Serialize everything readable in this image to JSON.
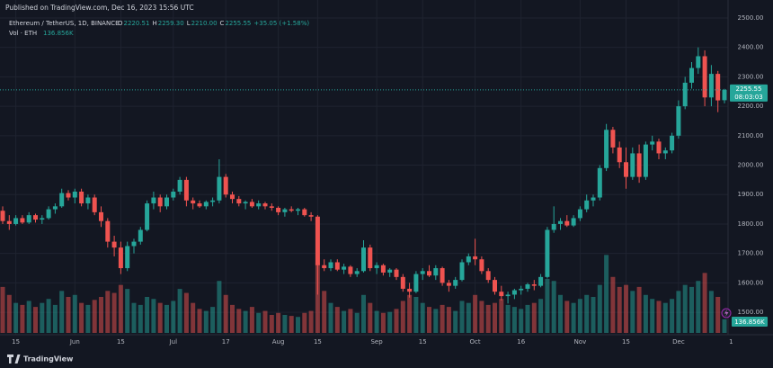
{
  "header": {
    "published": "Published on TradingView.com, Dec 16, 2023 15:56 UTC",
    "symbol": "Ethereum / TetherUS, 1D, BINANCE",
    "ohlc": [
      {
        "label": "O",
        "value": "2220.51"
      },
      {
        "label": "H",
        "value": "2259.30"
      },
      {
        "label": "L",
        "value": "2210.00"
      },
      {
        "label": "C",
        "value": "2255.55"
      }
    ],
    "change": "+35.05 (+1.58%)",
    "vol_label": "Vol · ETH",
    "vol_value": "136.856K",
    "countdown": "08:03:03"
  },
  "footer": {
    "brand": "TradingView"
  },
  "chart_data": {
    "type": "candlestick",
    "up_color": "#26a69a",
    "down_color": "#ef5350",
    "ylim": [
      1430,
      2561
    ],
    "yticks": [
      {
        "value": 1500,
        "label": "1500.00"
      },
      {
        "value": 1600,
        "label": "1600.00"
      },
      {
        "value": 1700,
        "label": "1700.00"
      },
      {
        "value": 1800,
        "label": "1800.00"
      },
      {
        "value": 1900,
        "label": "1900.00"
      },
      {
        "value": 2000,
        "label": "2000.00"
      },
      {
        "value": 2100,
        "label": "2100.00"
      },
      {
        "value": 2200,
        "label": "2200.00"
      },
      {
        "value": 2300,
        "label": "2300.00"
      },
      {
        "value": 2400,
        "label": "2400.00"
      },
      {
        "value": 2500,
        "label": "2500.00"
      }
    ],
    "xticks": [
      {
        "value": 2,
        "label": "15"
      },
      {
        "value": 11,
        "label": "Jun"
      },
      {
        "value": 18,
        "label": "15"
      },
      {
        "value": 26,
        "label": "Jul"
      },
      {
        "value": 34,
        "label": "17"
      },
      {
        "value": 42,
        "label": "Aug"
      },
      {
        "value": 48,
        "label": "15"
      },
      {
        "value": 57,
        "label": "Sep"
      },
      {
        "value": 64,
        "label": "15"
      },
      {
        "value": 72,
        "label": "Oct"
      },
      {
        "value": 79,
        "label": "16"
      },
      {
        "value": 88,
        "label": "Nov"
      },
      {
        "value": 95,
        "label": "15"
      },
      {
        "value": 103,
        "label": "Dec"
      },
      {
        "value": 111,
        "label": "1"
      }
    ],
    "last_price": 2255.55,
    "vol_lim": [
      0,
      900000
    ],
    "open": [
      1845,
      1810,
      1800,
      1820,
      1805,
      1830,
      1815,
      1820,
      1850,
      1860,
      1905,
      1890,
      1910,
      1870,
      1890,
      1840,
      1810,
      1740,
      1720,
      1650,
      1725,
      1740,
      1780,
      1870,
      1890,
      1860,
      1890,
      1910,
      1950,
      1880,
      1870,
      1860,
      1875,
      1880,
      1960,
      1900,
      1885,
      1870,
      1875,
      1860,
      1870,
      1860,
      1855,
      1840,
      1850,
      1845,
      1850,
      1830,
      1825,
      1660,
      1650,
      1670,
      1645,
      1655,
      1630,
      1640,
      1720,
      1650,
      1660,
      1635,
      1645,
      1620,
      1580,
      1570,
      1630,
      1640,
      1625,
      1650,
      1600,
      1590,
      1610,
      1670,
      1690,
      1680,
      1640,
      1610,
      1570,
      1555,
      1560,
      1575,
      1580,
      1595,
      1590,
      1620,
      1780,
      1800,
      1810,
      1795,
      1820,
      1850,
      1880,
      1890,
      1990,
      2120,
      2060,
      2010,
      1960,
      2040,
      1960,
      2070,
      2080,
      2040,
      2050,
      2100,
      2200,
      2280,
      2330,
      2370,
      2230,
      2310,
      2220.51
    ],
    "high": [
      1860,
      1830,
      1830,
      1830,
      1840,
      1835,
      1830,
      1860,
      1870,
      1920,
      1915,
      1920,
      1920,
      1900,
      1900,
      1860,
      1820,
      1760,
      1740,
      1740,
      1750,
      1790,
      1880,
      1910,
      1900,
      1900,
      1920,
      1960,
      1960,
      1890,
      1880,
      1880,
      1890,
      2020,
      1970,
      1910,
      1895,
      1880,
      1885,
      1880,
      1875,
      1870,
      1860,
      1855,
      1860,
      1855,
      1855,
      1840,
      1830,
      1680,
      1680,
      1680,
      1665,
      1660,
      1650,
      1745,
      1730,
      1670,
      1665,
      1650,
      1650,
      1630,
      1600,
      1640,
      1650,
      1660,
      1660,
      1655,
      1610,
      1620,
      1680,
      1700,
      1750,
      1690,
      1650,
      1620,
      1590,
      1570,
      1580,
      1590,
      1600,
      1610,
      1630,
      1790,
      1860,
      1820,
      1830,
      1830,
      1860,
      1900,
      1900,
      2000,
      2140,
      2130,
      2080,
      2060,
      2060,
      2070,
      2080,
      2100,
      2090,
      2060,
      2110,
      2220,
      2300,
      2350,
      2400,
      2390,
      2340,
      2320,
      2259.3
    ],
    "low": [
      1800,
      1780,
      1795,
      1800,
      1800,
      1805,
      1800,
      1815,
      1835,
      1855,
      1880,
      1870,
      1860,
      1850,
      1830,
      1790,
      1720,
      1690,
      1630,
      1640,
      1700,
      1730,
      1775,
      1850,
      1840,
      1850,
      1880,
      1900,
      1860,
      1850,
      1855,
      1850,
      1860,
      1870,
      1890,
      1870,
      1860,
      1850,
      1855,
      1850,
      1850,
      1845,
      1830,
      1825,
      1840,
      1830,
      1825,
      1810,
      1560,
      1640,
      1640,
      1640,
      1630,
      1620,
      1620,
      1635,
      1640,
      1630,
      1625,
      1620,
      1610,
      1570,
      1550,
      1565,
      1610,
      1620,
      1610,
      1590,
      1570,
      1580,
      1605,
      1660,
      1660,
      1630,
      1600,
      1560,
      1540,
      1530,
      1545,
      1560,
      1570,
      1575,
      1585,
      1615,
      1770,
      1780,
      1790,
      1790,
      1810,
      1840,
      1860,
      1880,
      1980,
      2040,
      1990,
      1920,
      1950,
      1940,
      1950,
      2050,
      2020,
      2020,
      2040,
      2090,
      2190,
      2260,
      2310,
      2200,
      2200,
      2180,
      2210.0
    ],
    "close": [
      1810,
      1800,
      1820,
      1805,
      1830,
      1815,
      1820,
      1850,
      1860,
      1905,
      1890,
      1910,
      1870,
      1890,
      1840,
      1810,
      1740,
      1720,
      1650,
      1725,
      1740,
      1780,
      1870,
      1890,
      1860,
      1890,
      1910,
      1950,
      1880,
      1870,
      1860,
      1875,
      1880,
      1960,
      1900,
      1885,
      1870,
      1875,
      1860,
      1870,
      1860,
      1855,
      1840,
      1850,
      1845,
      1850,
      1830,
      1825,
      1660,
      1650,
      1670,
      1645,
      1655,
      1630,
      1640,
      1720,
      1650,
      1660,
      1635,
      1645,
      1620,
      1580,
      1570,
      1630,
      1640,
      1625,
      1650,
      1600,
      1590,
      1610,
      1670,
      1690,
      1680,
      1640,
      1610,
      1570,
      1555,
      1560,
      1575,
      1580,
      1595,
      1590,
      1620,
      1780,
      1800,
      1810,
      1795,
      1820,
      1850,
      1880,
      1890,
      1990,
      2120,
      2060,
      2010,
      1960,
      2040,
      1960,
      2070,
      2080,
      2040,
      2050,
      2100,
      2200,
      2280,
      2330,
      2370,
      2230,
      2310,
      2220,
      2255.55
    ],
    "volume": [
      460000,
      380000,
      300000,
      280000,
      320000,
      260000,
      300000,
      340000,
      280000,
      420000,
      360000,
      380000,
      300000,
      280000,
      330000,
      360000,
      420000,
      400000,
      480000,
      440000,
      300000,
      280000,
      360000,
      340000,
      300000,
      280000,
      320000,
      440000,
      400000,
      300000,
      240000,
      220000,
      260000,
      520000,
      380000,
      280000,
      240000,
      220000,
      260000,
      200000,
      220000,
      180000,
      200000,
      180000,
      170000,
      160000,
      200000,
      220000,
      700000,
      420000,
      300000,
      260000,
      220000,
      240000,
      200000,
      380000,
      300000,
      220000,
      200000,
      210000,
      240000,
      320000,
      380000,
      360000,
      300000,
      260000,
      240000,
      280000,
      260000,
      220000,
      320000,
      300000,
      380000,
      320000,
      280000,
      300000,
      340000,
      280000,
      260000,
      240000,
      280000,
      300000,
      340000,
      540000,
      520000,
      380000,
      320000,
      300000,
      340000,
      380000,
      360000,
      480000,
      780000,
      560000,
      460000,
      480000,
      420000,
      460000,
      380000,
      340000,
      320000,
      300000,
      340000,
      420000,
      480000,
      460000,
      520000,
      600000,
      420000,
      360000,
      136856
    ]
  }
}
